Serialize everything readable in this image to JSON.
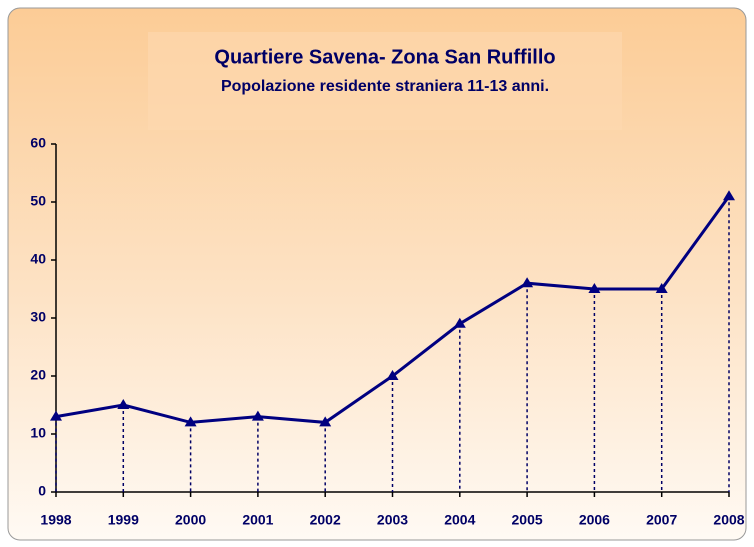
{
  "chart_data": {
    "type": "line",
    "title": "Quartiere Savena- Zona San Ruffillo",
    "subtitle": "Popolazione residente straniera 11-13 anni.",
    "categories": [
      "1998",
      "1999",
      "2000",
      "2001",
      "2002",
      "2003",
      "2004",
      "2005",
      "2006",
      "2007",
      "2008"
    ],
    "values": [
      13,
      15,
      12,
      13,
      12,
      20,
      29,
      36,
      35,
      35,
      51
    ],
    "color": "#000080",
    "ylim": [
      0,
      60
    ],
    "yticks": [
      0,
      10,
      20,
      30,
      40,
      50,
      60
    ],
    "drop_lines": true
  }
}
